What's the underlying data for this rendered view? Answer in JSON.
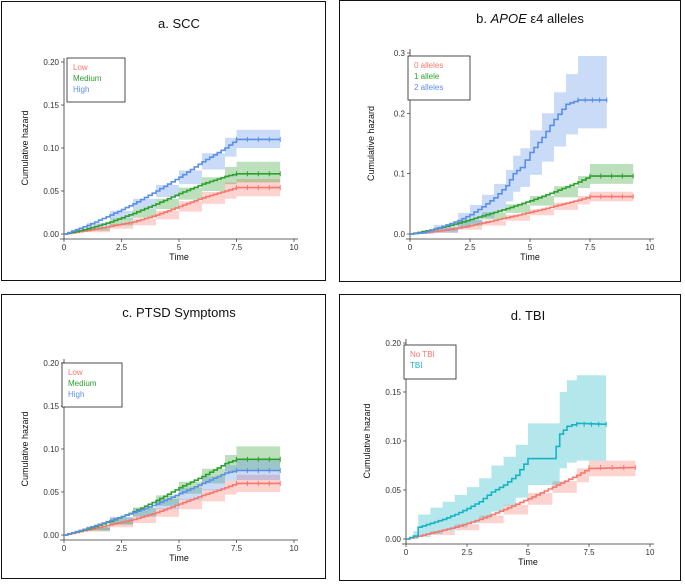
{
  "figure": {
    "time_axis_label": "Time",
    "hazard_axis_label": "Cumulative hazard"
  },
  "chart_data": [
    {
      "id": "scc",
      "type": "line",
      "title": "a. SCC",
      "xlabel": "Time",
      "ylabel": "Cumulative hazard",
      "xlim": [
        0,
        10
      ],
      "ylim": [
        0,
        0.2
      ],
      "xticks": [
        0,
        2.5,
        5,
        7.5,
        10
      ],
      "yticks": [
        0,
        0.05,
        0.1,
        0.15,
        0.2
      ],
      "ytick_labels": [
        "0.00",
        "0.05",
        "0.10",
        "0.15",
        "0.20"
      ],
      "legend_position": "top-left",
      "series": [
        {
          "name": "Low",
          "color": "#f8766d",
          "x": [
            0,
            1,
            2,
            3,
            4,
            5,
            6,
            7,
            7.5,
            9.4
          ],
          "y": [
            0,
            0.004,
            0.009,
            0.014,
            0.022,
            0.032,
            0.042,
            0.05,
            0.054,
            0.054
          ],
          "lower": [
            0,
            0.002,
            0.006,
            0.01,
            0.017,
            0.026,
            0.035,
            0.041,
            0.044,
            0.044
          ],
          "upper": [
            0,
            0.006,
            0.012,
            0.018,
            0.027,
            0.038,
            0.049,
            0.06,
            0.064,
            0.064
          ]
        },
        {
          "name": "Medium",
          "color": "#2ca02c",
          "x": [
            0,
            1,
            2,
            3,
            4,
            5,
            6,
            7,
            7.5,
            9.4
          ],
          "y": [
            0,
            0.006,
            0.014,
            0.024,
            0.035,
            0.047,
            0.058,
            0.067,
            0.07,
            0.07
          ],
          "lower": [
            0,
            0.004,
            0.01,
            0.019,
            0.029,
            0.04,
            0.05,
            0.058,
            0.06,
            0.06
          ],
          "upper": [
            0,
            0.008,
            0.018,
            0.029,
            0.041,
            0.054,
            0.066,
            0.078,
            0.084,
            0.084
          ]
        },
        {
          "name": "High",
          "color": "#5b8fe6",
          "x": [
            0,
            1,
            2,
            3,
            4,
            5,
            6,
            7,
            7.5,
            9.4
          ],
          "y": [
            0,
            0.01,
            0.022,
            0.035,
            0.05,
            0.066,
            0.084,
            0.1,
            0.11,
            0.11
          ],
          "lower": [
            0,
            0.007,
            0.017,
            0.029,
            0.043,
            0.058,
            0.075,
            0.09,
            0.1,
            0.1
          ],
          "upper": [
            0,
            0.013,
            0.027,
            0.041,
            0.057,
            0.074,
            0.094,
            0.112,
            0.121,
            0.121
          ]
        }
      ]
    },
    {
      "id": "apoe",
      "type": "line",
      "title_prefix": "b. ",
      "title_italic": "APOE",
      "title_suffix": " ε4 alleles",
      "xlabel": "Time",
      "ylabel": "Cumulative hazard",
      "xlim": [
        0,
        10
      ],
      "ylim": [
        0,
        0.3
      ],
      "xticks": [
        0,
        2.5,
        5,
        7.5,
        10
      ],
      "yticks": [
        0,
        0.1,
        0.2,
        0.3
      ],
      "ytick_labels": [
        "0.0",
        "0.1",
        "0.2",
        "0.3"
      ],
      "legend_position": "top-left",
      "series": [
        {
          "name": "0 alleles",
          "color": "#f8766d",
          "x": [
            0,
            1,
            2,
            3,
            4,
            5,
            6,
            7,
            7.5,
            9.3
          ],
          "y": [
            0,
            0.004,
            0.01,
            0.018,
            0.027,
            0.036,
            0.046,
            0.056,
            0.062,
            0.062
          ],
          "lower": [
            0,
            0.002,
            0.007,
            0.014,
            0.022,
            0.031,
            0.04,
            0.049,
            0.054,
            0.054
          ],
          "upper": [
            0,
            0.006,
            0.013,
            0.022,
            0.032,
            0.041,
            0.052,
            0.063,
            0.07,
            0.07
          ]
        },
        {
          "name": "1 allele",
          "color": "#2ca02c",
          "x": [
            0,
            1,
            2,
            3,
            4,
            5,
            6,
            7,
            7.5,
            9.3
          ],
          "y": [
            0,
            0.008,
            0.018,
            0.03,
            0.042,
            0.055,
            0.07,
            0.086,
            0.096,
            0.096
          ],
          "lower": [
            0,
            0.005,
            0.013,
            0.024,
            0.035,
            0.047,
            0.061,
            0.076,
            0.083,
            0.083
          ],
          "upper": [
            0,
            0.011,
            0.023,
            0.036,
            0.049,
            0.063,
            0.079,
            0.096,
            0.116,
            0.116
          ]
        },
        {
          "name": "2 alleles",
          "color": "#5b8fe6",
          "x": [
            0,
            0.5,
            1,
            2,
            2.5,
            3,
            3.5,
            4,
            4.3,
            4.6,
            5,
            5.5,
            6,
            6.5,
            7,
            8.2
          ],
          "y": [
            0,
            0.002,
            0.008,
            0.022,
            0.032,
            0.045,
            0.06,
            0.08,
            0.1,
            0.11,
            0.135,
            0.16,
            0.19,
            0.215,
            0.222,
            0.222
          ],
          "lower": [
            0,
            0,
            0.002,
            0.01,
            0.017,
            0.027,
            0.038,
            0.054,
            0.07,
            0.078,
            0.098,
            0.12,
            0.145,
            0.165,
            0.175,
            0.175
          ],
          "upper": [
            0,
            0.005,
            0.015,
            0.035,
            0.048,
            0.065,
            0.083,
            0.106,
            0.13,
            0.142,
            0.172,
            0.2,
            0.235,
            0.265,
            0.295,
            0.295
          ]
        }
      ]
    },
    {
      "id": "ptsd",
      "type": "line",
      "title": "c. PTSD Symptoms",
      "xlabel": "Time",
      "ylabel": "Cumulative hazard",
      "xlim": [
        0,
        10
      ],
      "ylim": [
        0,
        0.2
      ],
      "xticks": [
        0,
        2.5,
        5,
        7.5,
        10
      ],
      "yticks": [
        0,
        0.05,
        0.1,
        0.15,
        0.2
      ],
      "ytick_labels": [
        "0.00",
        "0.05",
        "0.10",
        "0.15",
        "0.20"
      ],
      "legend_position": "top-left",
      "series": [
        {
          "name": "Low",
          "color": "#f8766d",
          "x": [
            0,
            1,
            2,
            3,
            4,
            5,
            6,
            7,
            7.5,
            9.4
          ],
          "y": [
            0,
            0.006,
            0.012,
            0.018,
            0.026,
            0.036,
            0.046,
            0.055,
            0.06,
            0.06
          ],
          "lower": [
            0,
            0.004,
            0.009,
            0.014,
            0.021,
            0.03,
            0.039,
            0.047,
            0.05,
            0.05
          ],
          "upper": [
            0,
            0.008,
            0.015,
            0.022,
            0.031,
            0.042,
            0.053,
            0.063,
            0.07,
            0.07
          ]
        },
        {
          "name": "Medium",
          "color": "#2ca02c",
          "x": [
            0,
            1,
            2,
            3,
            4,
            5,
            6,
            7,
            7.5,
            9.4
          ],
          "y": [
            0,
            0.007,
            0.016,
            0.027,
            0.04,
            0.055,
            0.068,
            0.083,
            0.088,
            0.088
          ],
          "lower": [
            0,
            0.005,
            0.012,
            0.022,
            0.034,
            0.048,
            0.06,
            0.074,
            0.075,
            0.075
          ],
          "upper": [
            0,
            0.009,
            0.02,
            0.032,
            0.046,
            0.062,
            0.077,
            0.093,
            0.103,
            0.103
          ]
        },
        {
          "name": "High",
          "color": "#5b8fe6",
          "x": [
            0,
            1,
            2,
            3,
            4,
            5,
            6,
            7,
            7.5,
            9.4
          ],
          "y": [
            0,
            0.008,
            0.017,
            0.026,
            0.036,
            0.048,
            0.06,
            0.072,
            0.075,
            0.075
          ],
          "lower": [
            0,
            0.006,
            0.013,
            0.021,
            0.03,
            0.041,
            0.052,
            0.063,
            0.064,
            0.064
          ],
          "upper": [
            0,
            0.01,
            0.021,
            0.031,
            0.042,
            0.055,
            0.068,
            0.081,
            0.087,
            0.087
          ]
        }
      ]
    },
    {
      "id": "tbi",
      "type": "line",
      "title": "d. TBI",
      "xlabel": "Time",
      "ylabel": "Cumulative hazard",
      "xlim": [
        0,
        10
      ],
      "ylim": [
        0,
        0.2
      ],
      "xticks": [
        0,
        2.5,
        5,
        7.5,
        10
      ],
      "yticks": [
        0,
        0.05,
        0.1,
        0.15,
        0.2
      ],
      "ytick_labels": [
        "0.00",
        "0.05",
        "0.10",
        "0.15",
        "0.20"
      ],
      "legend_position": "top-left",
      "series": [
        {
          "name": "No TBI",
          "color": "#f8766d",
          "x": [
            0,
            1,
            2,
            3,
            4,
            5,
            6,
            7,
            7.5,
            9.4
          ],
          "y": [
            0,
            0.006,
            0.012,
            0.02,
            0.03,
            0.041,
            0.053,
            0.065,
            0.072,
            0.073
          ],
          "lower": [
            0,
            0.004,
            0.009,
            0.016,
            0.025,
            0.035,
            0.047,
            0.058,
            0.064,
            0.065
          ],
          "upper": [
            0,
            0.008,
            0.015,
            0.024,
            0.035,
            0.047,
            0.059,
            0.072,
            0.08,
            0.081
          ]
        },
        {
          "name": "TBI",
          "color": "#17b3c3",
          "x": [
            0,
            0.3,
            0.5,
            1,
            1.5,
            2,
            2.5,
            3,
            3.5,
            4,
            4.5,
            5,
            5.5,
            6,
            6.3,
            6.6,
            7,
            8.2
          ],
          "y": [
            0,
            0.003,
            0.012,
            0.016,
            0.02,
            0.025,
            0.031,
            0.038,
            0.048,
            0.055,
            0.065,
            0.082,
            0.082,
            0.082,
            0.107,
            0.115,
            0.118,
            0.117
          ],
          "lower": [
            0,
            0,
            0.002,
            0.005,
            0.008,
            0.012,
            0.016,
            0.021,
            0.028,
            0.034,
            0.042,
            0.055,
            0.055,
            0.055,
            0.072,
            0.078,
            0.08,
            0.08
          ],
          "upper": [
            0,
            0.008,
            0.025,
            0.032,
            0.038,
            0.045,
            0.053,
            0.062,
            0.075,
            0.084,
            0.096,
            0.118,
            0.118,
            0.118,
            0.15,
            0.162,
            0.167,
            0.167
          ]
        }
      ]
    }
  ]
}
